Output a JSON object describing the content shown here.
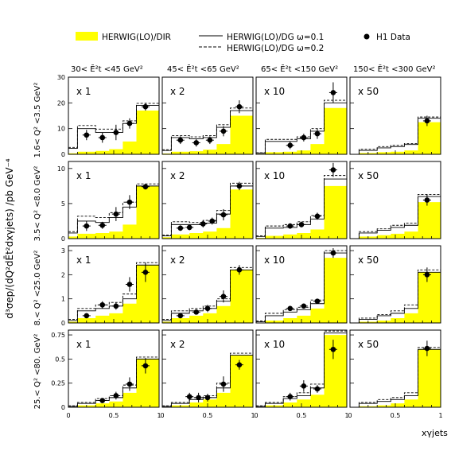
{
  "legend": {
    "dir_label": "HERWIG(LO)/DIR",
    "dg1_label": "HERWIG(LO)/DG ω=0.1",
    "dg2_label": "HERWIG(LO)/DG ω=0.2",
    "data_label": "H1 Data"
  },
  "y_axis_title": "d³σep/(dQ²dĒt²dxγjets)   /pb GeV⁻⁴",
  "x_axis_title": "xγjets",
  "columns": [
    "30< Ē²t <45 GeV²",
    "45< Ē²t <65 GeV²",
    "65< Ē²t <150 GeV²",
    "150< Ē²t <300 GeV²"
  ],
  "rows": [
    "1.6< Q² <3.5 GeV²",
    "3.5< Q² <8.0 GeV²",
    "8.< Q² <25.0 GeV²",
    "25.< Q² <80. GeV²"
  ],
  "scale_factors": [
    "x 1",
    "x 2",
    "x 10",
    "x 50"
  ],
  "colors": {
    "dir_fill": "#ffff00",
    "line": "#000000",
    "frame": "#000000"
  },
  "chart_data": {
    "type": "histogram-grid",
    "x_bins": [
      0.0,
      0.1,
      0.3,
      0.45,
      0.6,
      0.75,
      1.0
    ],
    "x_ticks": [
      "0",
      "0.5",
      "1"
    ],
    "rows": [
      {
        "ylim": [
          0,
          30
        ],
        "y_ticks": [
          0,
          10,
          20,
          30
        ],
        "panels": [
          {
            "dir": [
              0.4,
              1.0,
              1.3,
              2.0,
              5.0,
              17.0
            ],
            "dg01": [
              2.3,
              10.0,
              8.5,
              8.5,
              12.0,
              19.0
            ],
            "dg02": [
              2.7,
              11.2,
              9.8,
              9.8,
              13.0,
              19.8
            ],
            "data": [
              [
                0.2,
                7.5,
                2.0
              ],
              [
                0.375,
                6.5,
                2.0
              ],
              [
                0.525,
                8.5,
                3.0
              ],
              [
                0.675,
                12.0,
                2.0
              ],
              [
                0.85,
                18.5,
                1.5
              ]
            ]
          },
          {
            "dir": [
              0.3,
              1.0,
              1.2,
              1.8,
              4.0,
              15.0
            ],
            "dg01": [
              1.5,
              6.5,
              6.0,
              6.5,
              10.5,
              17.0
            ],
            "dg02": [
              1.8,
              7.3,
              6.8,
              7.3,
              11.5,
              18.0
            ],
            "data": [
              [
                0.2,
                5.5,
                1.5
              ],
              [
                0.375,
                4.5,
                1.5
              ],
              [
                0.525,
                5.5,
                1.5
              ],
              [
                0.675,
                9.0,
                2.0
              ],
              [
                0.85,
                18.5,
                2.5
              ]
            ]
          },
          {
            "dir": [
              0.2,
              0.8,
              1.0,
              1.5,
              4.0,
              18.0
            ],
            "dg01": [
              0.5,
              5.0,
              5.0,
              6.0,
              9.0,
              20.0
            ],
            "dg02": [
              0.6,
              5.8,
              5.8,
              6.8,
              10.0,
              21.0
            ],
            "data": [
              [
                0.375,
                3.5,
                1.5
              ],
              [
                0.525,
                6.5,
                1.5
              ],
              [
                0.675,
                8.0,
                2.0
              ],
              [
                0.85,
                24.0,
                4.0
              ]
            ]
          },
          {
            "dir": [
              0.0,
              0.5,
              0.8,
              1.0,
              1.5,
              12.5
            ],
            "dg01": [
              0.0,
              1.5,
              2.5,
              3.0,
              3.8,
              14.0
            ],
            "dg02": [
              0.0,
              2.0,
              3.0,
              3.5,
              4.2,
              14.5
            ],
            "data": [
              [
                0.85,
                13.0,
                2.0
              ]
            ]
          }
        ]
      },
      {
        "ylim": [
          0,
          11
        ],
        "y_ticks": [
          0,
          5,
          10
        ],
        "panels": [
          {
            "dir": [
              0.3,
              0.7,
              0.8,
              1.0,
              2.0,
              7.5
            ],
            "dg01": [
              0.8,
              2.5,
              2.3,
              3.0,
              4.5,
              7.5
            ],
            "dg02": [
              1.0,
              3.2,
              3.0,
              3.7,
              5.2,
              7.8
            ],
            "data": [
              [
                0.2,
                1.8,
                0.7
              ],
              [
                0.375,
                1.9,
                0.5
              ],
              [
                0.525,
                3.5,
                1.0
              ],
              [
                0.675,
                5.2,
                1.0
              ],
              [
                0.85,
                7.4,
                0.4
              ]
            ]
          },
          {
            "dir": [
              0.2,
              0.6,
              0.8,
              1.0,
              1.5,
              7.0
            ],
            "dg01": [
              0.4,
              2.0,
              2.0,
              2.2,
              3.5,
              7.5
            ],
            "dg02": [
              0.5,
              2.4,
              2.3,
              2.6,
              4.0,
              7.9
            ],
            "data": [
              [
                0.2,
                1.5,
                0.4
              ],
              [
                0.3,
                1.6,
                0.4
              ],
              [
                0.45,
                2.1,
                0.5
              ],
              [
                0.55,
                2.5,
                0.5
              ],
              [
                0.675,
                3.4,
                0.8
              ],
              [
                0.85,
                7.5,
                0.6
              ]
            ]
          },
          {
            "dir": [
              0.1,
              0.4,
              0.6,
              0.8,
              1.3,
              7.5
            ],
            "dg01": [
              0.3,
              1.5,
              1.6,
              2.0,
              2.8,
              8.5
            ],
            "dg02": [
              0.4,
              1.8,
              2.0,
              2.4,
              3.3,
              9.0
            ],
            "data": [
              [
                0.375,
                1.8,
                0.4
              ],
              [
                0.5,
                2.0,
                0.4
              ],
              [
                0.675,
                3.2,
                0.5
              ],
              [
                0.85,
                9.8,
                1.0
              ]
            ]
          },
          {
            "dir": [
              0.0,
              0.3,
              0.5,
              0.7,
              1.0,
              5.2
            ],
            "dg01": [
              0.0,
              0.8,
              1.2,
              1.6,
              1.9,
              6.0
            ],
            "dg02": [
              0.0,
              1.0,
              1.4,
              1.9,
              2.2,
              6.3
            ],
            "data": [
              [
                0.85,
                5.5,
                0.8
              ]
            ]
          }
        ]
      },
      {
        "ylim": [
          0,
          3.2
        ],
        "y_ticks": [
          0,
          1,
          2,
          3
        ],
        "panels": [
          {
            "dir": [
              0.05,
              0.2,
              0.3,
              0.4,
              0.8,
              2.4
            ],
            "dg01": [
              0.1,
              0.5,
              0.6,
              0.7,
              1.0,
              2.4
            ],
            "dg02": [
              0.15,
              0.6,
              0.75,
              0.85,
              1.2,
              2.5
            ],
            "data": [
              [
                0.2,
                0.3,
                0.1
              ],
              [
                0.375,
                0.75,
                0.15
              ],
              [
                0.525,
                0.7,
                0.15
              ],
              [
                0.675,
                1.6,
                0.3
              ],
              [
                0.85,
                2.1,
                0.4
              ]
            ]
          },
          {
            "dir": [
              0.05,
              0.2,
              0.3,
              0.4,
              0.7,
              2.2
            ],
            "dg01": [
              0.1,
              0.4,
              0.5,
              0.6,
              0.9,
              2.2
            ],
            "dg02": [
              0.15,
              0.5,
              0.6,
              0.7,
              1.0,
              2.3
            ],
            "data": [
              [
                0.2,
                0.3,
                0.1
              ],
              [
                0.375,
                0.45,
                0.1
              ],
              [
                0.5,
                0.6,
                0.15
              ],
              [
                0.675,
                1.1,
                0.25
              ],
              [
                0.85,
                2.2,
                0.2
              ]
            ]
          },
          {
            "dir": [
              0.0,
              0.1,
              0.2,
              0.3,
              0.6,
              2.7
            ],
            "dg01": [
              0.05,
              0.3,
              0.45,
              0.55,
              0.8,
              2.9
            ],
            "dg02": [
              0.08,
              0.4,
              0.55,
              0.65,
              0.95,
              3.0
            ],
            "data": [
              [
                0.375,
                0.6,
                0.1
              ],
              [
                0.525,
                0.7,
                0.1
              ],
              [
                0.675,
                0.9,
                0.1
              ],
              [
                0.85,
                2.9,
                0.2
              ]
            ]
          },
          {
            "dir": [
              0.0,
              0.05,
              0.1,
              0.2,
              0.4,
              2.1
            ],
            "dg01": [
              0.0,
              0.15,
              0.3,
              0.4,
              0.6,
              2.1
            ],
            "dg02": [
              0.0,
              0.2,
              0.35,
              0.5,
              0.75,
              2.2
            ],
            "data": [
              [
                0.85,
                2.0,
                0.3
              ]
            ]
          }
        ]
      },
      {
        "ylim": [
          0,
          0.8
        ],
        "y_ticks": [
          0,
          0.25,
          0.5,
          0.75
        ],
        "panels": [
          {
            "dir": [
              0.0,
              0.02,
              0.04,
              0.06,
              0.15,
              0.5
            ],
            "dg01": [
              0.01,
              0.04,
              0.07,
              0.1,
              0.2,
              0.5
            ],
            "dg02": [
              0.015,
              0.05,
              0.09,
              0.12,
              0.23,
              0.52
            ],
            "data": [
              [
                0.375,
                0.07,
                0.02
              ],
              [
                0.525,
                0.12,
                0.04
              ],
              [
                0.675,
                0.24,
                0.07
              ],
              [
                0.85,
                0.43,
                0.08
              ]
            ]
          },
          {
            "dir": [
              0.0,
              0.02,
              0.05,
              0.08,
              0.15,
              0.54
            ],
            "dg01": [
              0.01,
              0.04,
              0.08,
              0.1,
              0.2,
              0.54
            ],
            "dg02": [
              0.015,
              0.05,
              0.1,
              0.12,
              0.25,
              0.56
            ],
            "data": [
              [
                0.3,
                0.11,
                0.04
              ],
              [
                0.4,
                0.1,
                0.05
              ],
              [
                0.5,
                0.1,
                0.04
              ],
              [
                0.675,
                0.24,
                0.08
              ],
              [
                0.85,
                0.44,
                0.05
              ]
            ]
          },
          {
            "dir": [
              0.0,
              0.02,
              0.05,
              0.08,
              0.13,
              0.75
            ],
            "dg01": [
              0.01,
              0.04,
              0.09,
              0.12,
              0.2,
              0.77
            ],
            "dg02": [
              0.015,
              0.05,
              0.11,
              0.15,
              0.24,
              0.79
            ],
            "data": [
              [
                0.375,
                0.11,
                0.04
              ],
              [
                0.525,
                0.22,
                0.06
              ],
              [
                0.675,
                0.19,
                0.04
              ],
              [
                0.85,
                0.6,
                0.1
              ]
            ]
          },
          {
            "dir": [
              0.0,
              0.01,
              0.02,
              0.04,
              0.08,
              0.6
            ],
            "dg01": [
              0.0,
              0.04,
              0.06,
              0.08,
              0.12,
              0.6
            ],
            "dg02": [
              0.0,
              0.05,
              0.08,
              0.1,
              0.15,
              0.62
            ],
            "data": [
              [
                0.85,
                0.61,
                0.08
              ]
            ]
          }
        ]
      }
    ]
  }
}
